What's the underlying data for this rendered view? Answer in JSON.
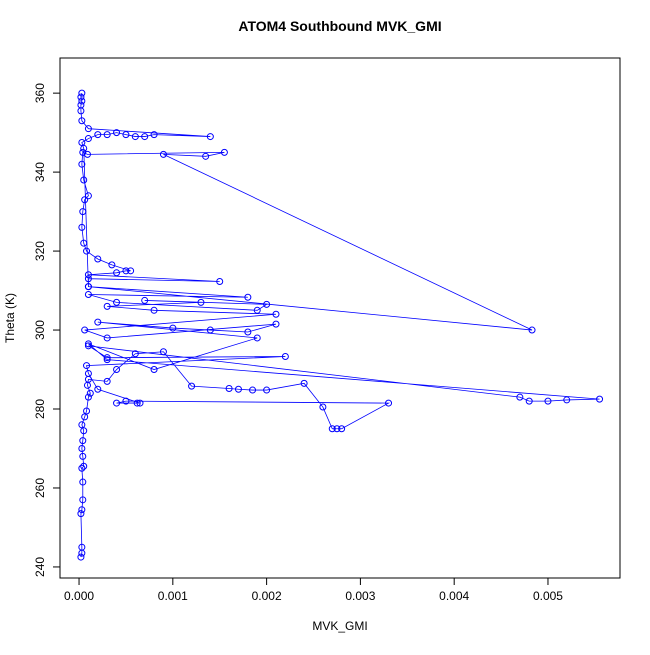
{
  "chart_data": {
    "type": "line",
    "title": "ATOM4 Southbound MVK_GMI",
    "x_label": "MVK_GMI",
    "y_label": "Theta (K)",
    "x": [
      2e-05,
      3e-05,
      3e-05,
      2e-05,
      3e-05,
      4e-05,
      4e-05,
      3e-05,
      5e-05,
      4e-05,
      3e-05,
      4e-05,
      5e-05,
      3e-05,
      6e-05,
      8e-05,
      0.0001,
      0.00012,
      9e-05,
      0.0001,
      0.0003,
      0.0004,
      0.0006,
      0.0009,
      0.0012,
      0.0016,
      0.0017,
      0.00185,
      0.002,
      0.0024,
      0.0026,
      0.0027,
      0.00275,
      0.0028,
      0.0033,
      0.0005,
      0.0004,
      0.00062,
      0.00065,
      0.0002,
      0.0001,
      8e-05,
      0.0022,
      0.0003,
      0.0001,
      0.0047,
      0.0048,
      0.005,
      0.0052,
      0.00555,
      0.0003,
      0.0001,
      0.0008,
      0.0019,
      0.0002,
      0.001,
      0.0014,
      0.0018,
      0.0021,
      0.0003,
      6e-05,
      0.0021,
      0.0008,
      0.0003,
      0.0013,
      0.0007,
      0.002,
      0.0019,
      0.0004,
      0.0001,
      0.0018,
      0.0001,
      0.0001,
      0.0015,
      0.0001,
      0.0004,
      0.0005,
      0.00055,
      0.00035,
      0.0002,
      8e-05,
      5e-05,
      3e-05,
      4e-05,
      6e-05,
      0.0001,
      5e-05,
      3e-05,
      4e-05,
      9e-05,
      0.00155,
      0.00135,
      0.0009,
      0.00483,
      0.0001,
      5e-05,
      3e-05,
      0.0001,
      0.0002,
      0.0003,
      0.0004,
      0.0005,
      0.0006,
      0.0007,
      0.0008,
      0.0014,
      0.0001,
      3e-05,
      2e-05,
      2e-05,
      3e-05,
      2e-05,
      3e-05
    ],
    "series": [
      {
        "name": "Theta",
        "color": "#0000ff",
        "values": [
          242.5,
          243.5,
          245,
          253.5,
          254.5,
          257,
          261.5,
          265,
          265.5,
          268,
          270,
          272,
          274.5,
          276,
          278,
          279.5,
          283,
          284,
          286,
          287.5,
          287,
          290,
          294,
          294.5,
          285.8,
          285.2,
          285,
          284.8,
          284.8,
          286.5,
          280.5,
          275,
          275,
          275,
          281.5,
          282,
          281.5,
          281.5,
          281.5,
          285,
          289,
          291,
          293.3,
          293,
          296,
          283,
          282,
          282,
          282.3,
          282.5,
          292.5,
          296.5,
          290,
          298,
          302,
          300.5,
          300,
          299.5,
          301.5,
          298,
          300,
          304,
          305,
          306,
          307,
          307.5,
          306.5,
          305,
          307,
          309,
          308.3,
          311,
          313,
          312.3,
          314,
          314.5,
          315,
          315,
          316.5,
          318,
          320,
          322,
          326,
          330,
          333,
          334,
          338,
          342,
          345,
          344.5,
          345,
          344,
          344.5,
          300,
          311,
          346,
          347.5,
          348.5,
          349.5,
          349.5,
          350,
          349.5,
          349,
          349,
          349.5,
          349,
          351,
          353,
          355.5,
          357,
          358,
          359,
          360
        ]
      }
    ],
    "xlim": [
      -0.000203,
      0.005768
    ],
    "ylim": [
      237.2,
      368.9
    ],
    "xticks": [
      {
        "value": 0,
        "label": "0.000"
      },
      {
        "value": 0.001,
        "label": "0.001"
      },
      {
        "value": 0.002,
        "label": "0.002"
      },
      {
        "value": 0.003,
        "label": "0.003"
      },
      {
        "value": 0.004,
        "label": "0.004"
      },
      {
        "value": 0.005,
        "label": "0.005"
      }
    ],
    "yticks": [
      240,
      260,
      280,
      300,
      320,
      340,
      360
    ]
  }
}
